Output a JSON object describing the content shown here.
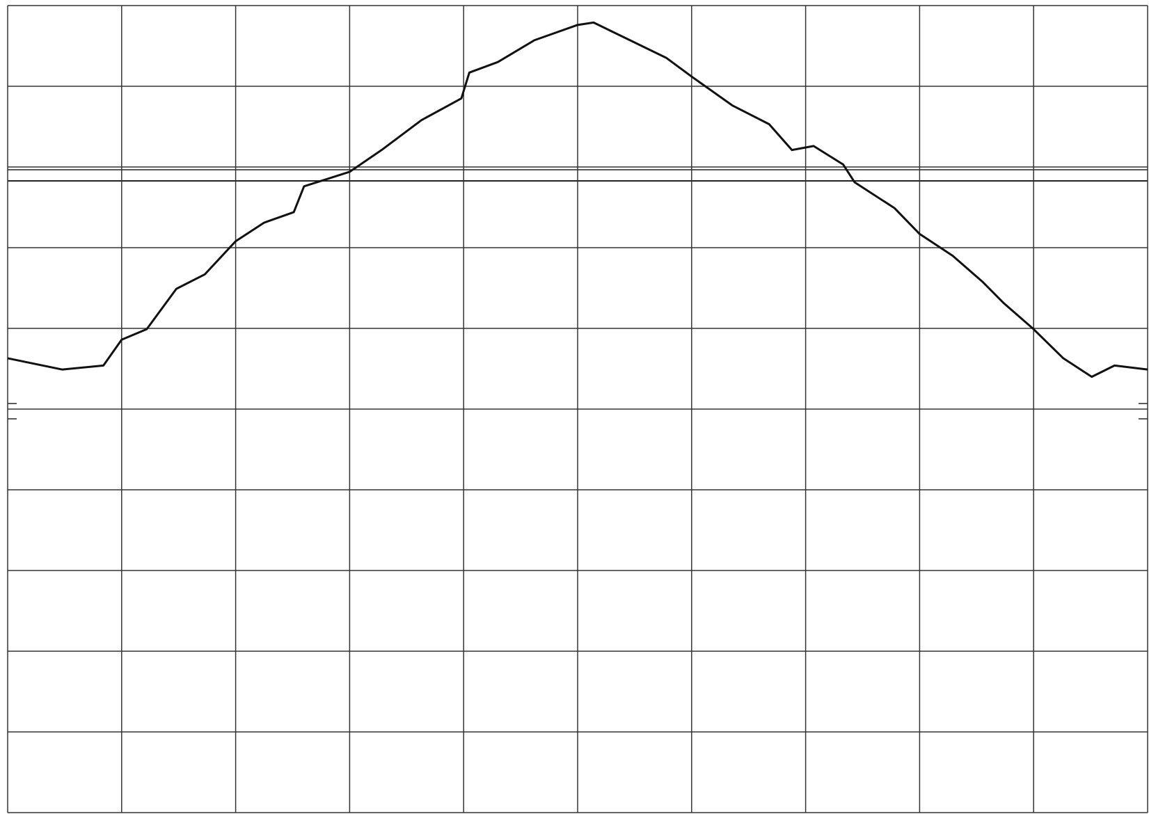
{
  "chart_data": {
    "type": "line",
    "x": [
      0,
      0.48,
      0.84,
      1.0,
      1.22,
      1.48,
      1.73,
      2.0,
      2.25,
      2.51,
      2.6,
      3.0,
      3.28,
      3.63,
      3.98,
      4.05,
      4.3,
      4.62,
      5.0,
      5.14,
      5.46,
      5.78,
      6.0,
      6.36,
      6.68,
      6.88,
      7.07,
      7.33,
      7.43,
      7.78,
      8.0,
      8.29,
      8.55,
      8.74,
      9.0,
      9.26,
      9.51,
      9.71,
      10
    ],
    "series": [
      {
        "color": "#111111",
        "values": [
          5.63,
          5.49,
          5.54,
          5.86,
          5.99,
          6.49,
          6.67,
          7.08,
          7.31,
          7.44,
          7.76,
          7.94,
          8.21,
          8.58,
          8.85,
          9.17,
          9.3,
          9.57,
          9.76,
          9.79,
          9.57,
          9.35,
          9.12,
          8.76,
          8.53,
          8.21,
          8.26,
          8.03,
          7.81,
          7.49,
          7.17,
          6.9,
          6.58,
          6.31,
          5.99,
          5.63,
          5.4,
          5.54,
          5.49
        ]
      }
    ],
    "xlim": [
      0,
      10
    ],
    "ylim": [
      0,
      10
    ],
    "xticks": [
      0,
      1,
      2,
      3,
      4,
      5,
      6,
      7,
      8,
      9,
      10
    ],
    "yticks": [
      0,
      1,
      2,
      3,
      4,
      5,
      6,
      7,
      8,
      9,
      10
    ],
    "grid": true
  }
}
